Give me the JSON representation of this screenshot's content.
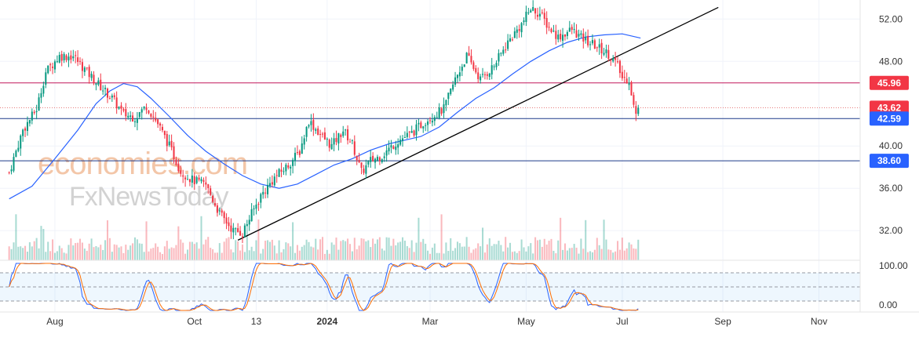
{
  "watermark": {
    "line1": "economies.com",
    "line2": "FxNewsToday"
  },
  "chart_data": [
    {
      "type": "candlestick",
      "title": "",
      "xlabel": "",
      "ylabel": "",
      "x_ticks": [
        {
          "label": "Aug",
          "t": 20,
          "bold": false
        },
        {
          "label": "Oct",
          "t": 81,
          "bold": false
        },
        {
          "label": "13",
          "t": 108,
          "bold": false
        },
        {
          "label": "2024",
          "t": 139,
          "bold": true
        },
        {
          "label": "Mar",
          "t": 184,
          "bold": false
        },
        {
          "label": "May",
          "t": 226,
          "bold": false
        },
        {
          "label": "Jul",
          "t": 268,
          "bold": false
        },
        {
          "label": "Sep",
          "t": 312,
          "bold": false
        },
        {
          "label": "Nov",
          "t": 354,
          "bold": false
        }
      ],
      "y_ticks": [
        32,
        36,
        40,
        48,
        52
      ],
      "ylim": [
        29.2,
        53.8
      ],
      "t_range": [
        -4,
        372
      ],
      "price_levels": [
        {
          "label": "45.96",
          "value": 45.96,
          "line_color": "#c2185b",
          "badge_color": "#f23645",
          "style": "solid"
        },
        {
          "label": "43.62",
          "value": 43.62,
          "line_color": "#e57373",
          "badge_color": "#f23645",
          "style": "dotted"
        },
        {
          "label": "42.59",
          "value": 42.59,
          "line_color": "#1e3a8a",
          "badge_color": "#2962ff",
          "style": "solid"
        },
        {
          "label": "38.60",
          "value": 38.6,
          "line_color": "#1e3a8a",
          "badge_color": "#2962ff",
          "style": "solid"
        }
      ],
      "trendline": {
        "from": [
          100,
          31.1
        ],
        "to": [
          310,
          53.1
        ],
        "color": "#000000"
      },
      "anchors": [
        [
          0,
          37.5
        ],
        [
          6,
          41.5
        ],
        [
          12,
          43.5
        ],
        [
          16,
          47
        ],
        [
          22,
          48.5
        ],
        [
          28,
          48.5
        ],
        [
          34,
          47
        ],
        [
          40,
          45.6
        ],
        [
          45,
          44.5
        ],
        [
          50,
          43
        ],
        [
          55,
          42.7
        ],
        [
          60,
          43.8
        ],
        [
          65,
          42.1
        ],
        [
          70,
          40
        ],
        [
          75,
          37.6
        ],
        [
          80,
          36.8
        ],
        [
          86,
          36.3
        ],
        [
          92,
          33.6
        ],
        [
          98,
          32
        ],
        [
          102,
          31.8
        ],
        [
          106,
          33.6
        ],
        [
          110,
          35.3
        ],
        [
          116,
          37
        ],
        [
          122,
          38.2
        ],
        [
          127,
          39.5
        ],
        [
          131,
          42.4
        ],
        [
          136,
          41.1
        ],
        [
          141,
          40
        ],
        [
          146,
          41.5
        ],
        [
          150,
          40.2
        ],
        [
          154,
          37.5
        ],
        [
          158,
          38.6
        ],
        [
          163,
          39.1
        ],
        [
          170,
          40.5
        ],
        [
          176,
          41.2
        ],
        [
          182,
          42.4
        ],
        [
          190,
          43.5
        ],
        [
          195,
          46.3
        ],
        [
          200,
          48.5
        ],
        [
          206,
          46.3
        ],
        [
          212,
          47.6
        ],
        [
          218,
          49.8
        ],
        [
          224,
          51.5
        ],
        [
          228,
          53
        ],
        [
          232,
          52.5
        ],
        [
          236,
          51.2
        ],
        [
          240,
          50.3
        ],
        [
          246,
          51
        ],
        [
          250,
          50.2
        ],
        [
          256,
          49.5
        ],
        [
          262,
          48.7
        ],
        [
          266,
          47.6
        ],
        [
          268,
          46.4
        ],
        [
          271,
          46.3
        ],
        [
          273,
          43.8
        ],
        [
          274,
          42.9
        ],
        [
          275,
          43.6
        ]
      ],
      "ma": [
        [
          0,
          35
        ],
        [
          10,
          36.2
        ],
        [
          20,
          38.8
        ],
        [
          30,
          41.5
        ],
        [
          38,
          44
        ],
        [
          44,
          45.2
        ],
        [
          50,
          45.9
        ],
        [
          56,
          45.6
        ],
        [
          62,
          44.5
        ],
        [
          70,
          42.8
        ],
        [
          78,
          41
        ],
        [
          86,
          39.5
        ],
        [
          94,
          38.3
        ],
        [
          102,
          37.2
        ],
        [
          110,
          36.4
        ],
        [
          118,
          36
        ],
        [
          126,
          36.4
        ],
        [
          134,
          37.3
        ],
        [
          142,
          38.2
        ],
        [
          150,
          38.8
        ],
        [
          158,
          39.6
        ],
        [
          166,
          40.2
        ],
        [
          174,
          40.6
        ],
        [
          180,
          40.9
        ],
        [
          188,
          41.8
        ],
        [
          196,
          43.2
        ],
        [
          204,
          44.5
        ],
        [
          212,
          45.5
        ],
        [
          220,
          46.8
        ],
        [
          228,
          48
        ],
        [
          236,
          49
        ],
        [
          244,
          49.8
        ],
        [
          252,
          50.3
        ],
        [
          260,
          50.5
        ],
        [
          268,
          50.6
        ],
        [
          276,
          50.2
        ]
      ],
      "stoch_levels": [
        80,
        50,
        20
      ]
    }
  ]
}
